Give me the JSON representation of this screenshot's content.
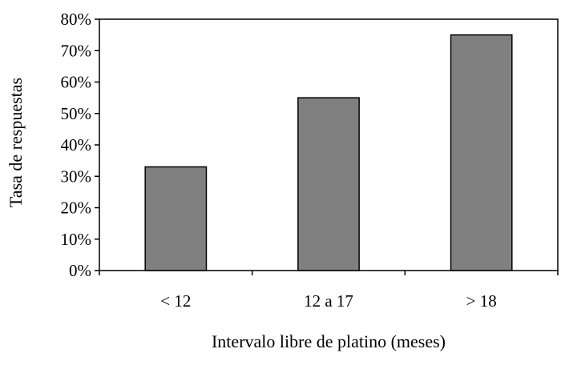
{
  "chart_data": {
    "type": "bar",
    "categories": [
      "< 12",
      "12 a 17",
      "> 18"
    ],
    "values": [
      33,
      55,
      75
    ],
    "xlabel": "Intervalo libre de platino (meses)",
    "ylabel": "Tasa de respuestas",
    "ylim": [
      0,
      80
    ],
    "yticks": [
      "0%",
      "10%",
      "20%",
      "30%",
      "40%",
      "50%",
      "60%",
      "70%",
      "80%"
    ],
    "grid": false,
    "legend": "none",
    "colors": {
      "bar_fill": "#808080",
      "bar_stroke": "#000000",
      "axis": "#000000"
    }
  }
}
